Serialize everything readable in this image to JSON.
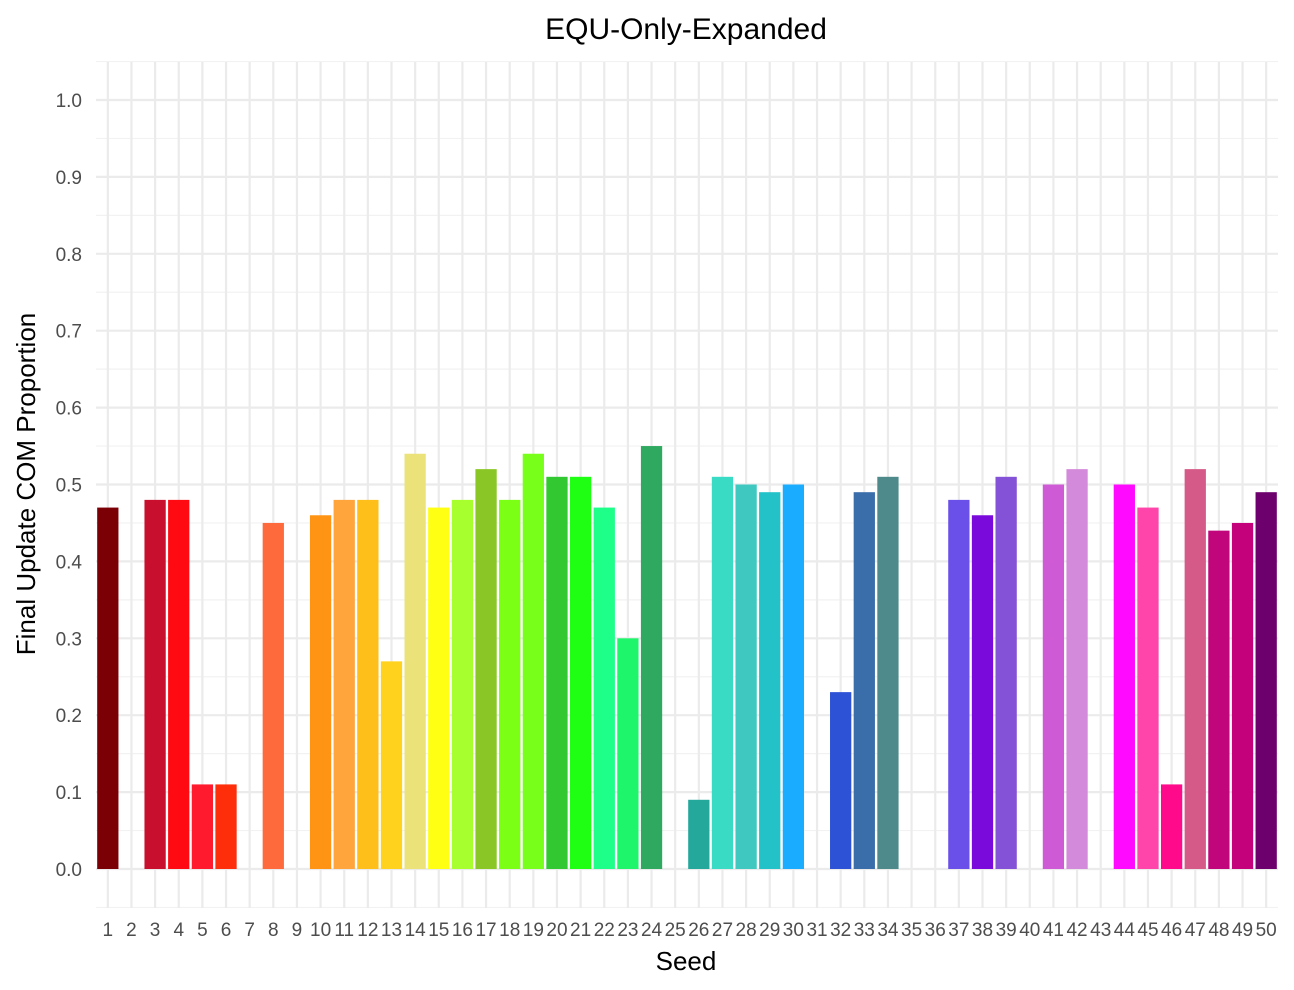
{
  "chart_data": {
    "type": "bar",
    "title": "EQU-Only-Expanded",
    "xlabel": "Seed",
    "ylabel": "Final Update COM Proportion",
    "ylim": [
      0.0,
      1.0
    ],
    "yticks": [
      "0.0",
      "0.1",
      "0.2",
      "0.3",
      "0.4",
      "0.5",
      "0.6",
      "0.7",
      "0.8",
      "0.9",
      "1.0"
    ],
    "grid": true,
    "legend": "none",
    "categories": [
      "1",
      "2",
      "3",
      "4",
      "5",
      "6",
      "7",
      "8",
      "9",
      "10",
      "11",
      "12",
      "13",
      "14",
      "15",
      "16",
      "17",
      "18",
      "19",
      "20",
      "21",
      "22",
      "23",
      "24",
      "25",
      "26",
      "27",
      "28",
      "29",
      "30",
      "31",
      "32",
      "33",
      "34",
      "35",
      "36",
      "37",
      "38",
      "39",
      "40",
      "41",
      "42",
      "43",
      "44",
      "45",
      "46",
      "47",
      "48",
      "49",
      "50"
    ],
    "values": [
      0.47,
      0,
      0.48,
      0.48,
      0.11,
      0.11,
      0,
      0.45,
      0,
      0.46,
      0.48,
      0.48,
      0.27,
      0.54,
      0.47,
      0.48,
      0.52,
      0.48,
      0.54,
      0.51,
      0.51,
      0.47,
      0.3,
      0.55,
      0,
      0.09,
      0.51,
      0.5,
      0.49,
      0.5,
      0,
      0.23,
      0.49,
      0.51,
      0,
      0,
      0.48,
      0.46,
      0.51,
      0,
      0.5,
      0.52,
      0,
      0.5,
      0.47,
      0.11,
      0.52,
      0.44,
      0.45,
      0.49
    ],
    "colors": [
      "#7A0006",
      "#D4062A",
      "#C8102E",
      "#FF0A12",
      "#FF1B2D",
      "#FF2E0A",
      "#FF5A3C",
      "#FF6A3C",
      "#FF7F24",
      "#FF9414",
      "#FFA53C",
      "#FFBF1A",
      "#FFD21E",
      "#EBE37A",
      "#FFFF14",
      "#A8FF2E",
      "#8AC726",
      "#7BFF14",
      "#78FF1A",
      "#32C832",
      "#1EFF14",
      "#1EFF8A",
      "#1EF56B",
      "#2FA860",
      "#2EB2A0",
      "#24A89C",
      "#3ADBC4",
      "#3EC8C0",
      "#22C2C8",
      "#1AACFF",
      "#1A90F0",
      "#2E52D6",
      "#3A6EAA",
      "#4E8A8C",
      "#5A6ADB",
      "#6A4FE8",
      "#6A4FE8",
      "#7A0ADB",
      "#8452D6",
      "#9C3CD6",
      "#CE5AD6",
      "#D48ADB",
      "#E05AE0",
      "#FF0AFF",
      "#FF44AA",
      "#FF0A8A",
      "#D65A88",
      "#C0067A",
      "#C4007A",
      "#6E006E"
    ]
  }
}
